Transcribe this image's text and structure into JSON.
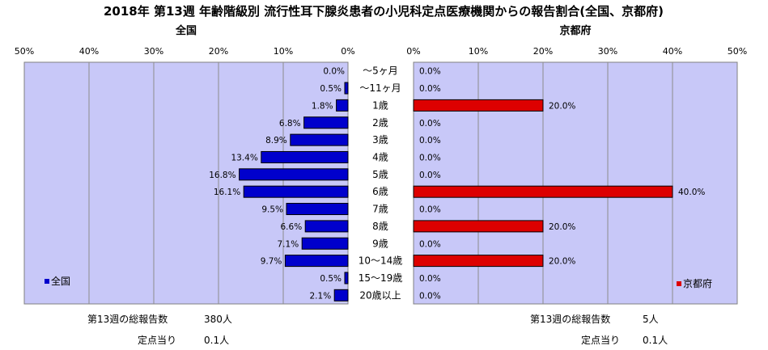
{
  "chart_data": {
    "type": "bar",
    "orientation": "horizontal",
    "title": "2018年 第13週 年齢階級別 流行性耳下腺炎患者の小児科定点医療機関からの報告割合(全国、京都府)",
    "categories": [
      "～5ヶ月",
      "～11ヶ月",
      "1歳",
      "2歳",
      "3歳",
      "4歳",
      "5歳",
      "6歳",
      "7歳",
      "8歳",
      "9歳",
      "10～14歳",
      "15～19歳",
      "20歳以上"
    ],
    "x_ticks": [
      "50%",
      "40%",
      "30%",
      "20%",
      "10%",
      "0%"
    ],
    "x_ticks_right": [
      "0%",
      "10%",
      "20%",
      "30%",
      "40%",
      "50%"
    ],
    "xlim": [
      0,
      50
    ],
    "grid": true,
    "series": [
      {
        "name": "全国",
        "panel_title": "全国",
        "color": "#0000cc",
        "values": [
          0.0,
          0.5,
          1.8,
          6.8,
          8.9,
          13.4,
          16.8,
          16.1,
          9.5,
          6.6,
          7.1,
          9.7,
          0.5,
          2.1
        ],
        "labels": [
          "0.0%",
          "0.5%",
          "1.8%",
          "6.8%",
          "8.9%",
          "13.4%",
          "16.8%",
          "16.1%",
          "9.5%",
          "6.6%",
          "7.1%",
          "9.7%",
          "0.5%",
          "2.1%"
        ]
      },
      {
        "name": "京都府",
        "panel_title": "京都府",
        "color": "#dd0000",
        "values": [
          0.0,
          0.0,
          20.0,
          0.0,
          0.0,
          0.0,
          0.0,
          40.0,
          0.0,
          20.0,
          0.0,
          20.0,
          0.0,
          0.0
        ],
        "labels": [
          "0.0%",
          "0.0%",
          "20.0%",
          "0.0%",
          "0.0%",
          "0.0%",
          "0.0%",
          "40.0%",
          "0.0%",
          "20.0%",
          "0.0%",
          "20.0%",
          "0.0%",
          "0.0%"
        ]
      }
    ]
  },
  "footer": {
    "national": {
      "total_label": "第13週の総報告数",
      "total_value": "380人",
      "per_label": "定点当り",
      "per_value": "0.1人"
    },
    "kyoto": {
      "total_label": "第13週の総報告数",
      "total_value": "5人",
      "per_label": "定点当り",
      "per_value": "0.1人"
    }
  }
}
